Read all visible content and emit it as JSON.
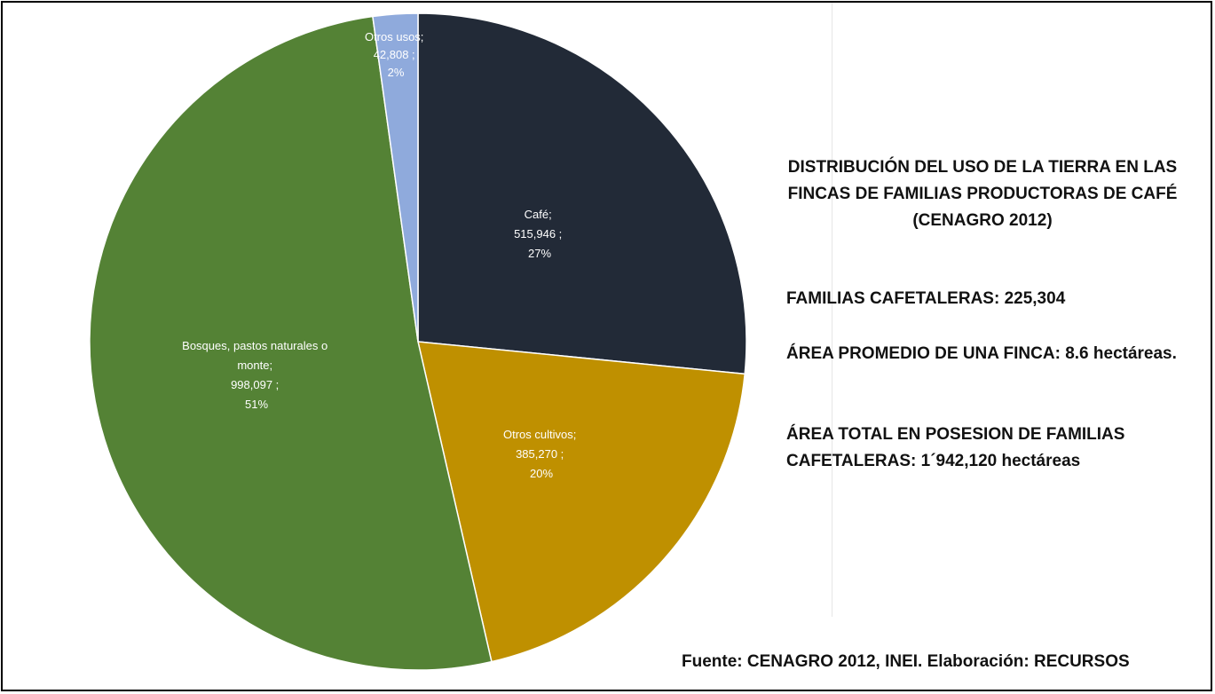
{
  "chart_data": {
    "type": "pie",
    "slices": [
      {
        "label": "Café",
        "value": 515946,
        "value_text": "515,946",
        "percent": 27,
        "percent_text": "27%",
        "color": "#222a37"
      },
      {
        "label": "Otros cultivos",
        "value": 385270,
        "value_text": "385,270",
        "percent": 20,
        "percent_text": "20%",
        "color": "#bf9000"
      },
      {
        "label": "Bosques, pastos naturales o monte",
        "value": 998097,
        "value_text": "998,097",
        "percent": 51,
        "percent_text": "51%",
        "color": "#548235"
      },
      {
        "label": "Otros usos",
        "value": 42808,
        "value_text": "42,808",
        "percent": 2,
        "percent_text": "2%",
        "color": "#8faadc"
      }
    ],
    "label_format": "label; value ; percent"
  },
  "labels": {
    "cafe": {
      "l1": "Café;",
      "l2": "515,946 ;",
      "l3": "27%"
    },
    "otros_cultivos": {
      "l1": "Otros cultivos;",
      "l2": "385,270 ;",
      "l3": "20%"
    },
    "bosques": {
      "l1": "Bosques, pastos naturales o",
      "l2": "monte;",
      "l3": "998,097 ;",
      "l4": "51%"
    },
    "otros_usos": {
      "l1": "Otros usos;",
      "l2": "42,808 ;",
      "l3": "2%"
    }
  },
  "title": {
    "line1": "DISTRIBUCIÓN DEL USO DE LA TIERRA EN LAS",
    "line2": "FINCAS DE FAMILIAS PRODUCTORAS DE CAFÉ",
    "line3": "(CENAGRO 2012)"
  },
  "stats": {
    "familias": "FAMILIAS CAFETALERAS: 225,304",
    "area_promedio": "ÁREA PROMEDIO DE UNA FINCA: 8.6 hectáreas.",
    "area_total": "ÁREA TOTAL EN POSESION DE FAMILIAS CAFETALERAS: 1´942,120 hectáreas"
  },
  "source": "Fuente: CENAGRO 2012, INEI. Elaboración: RECURSOS"
}
